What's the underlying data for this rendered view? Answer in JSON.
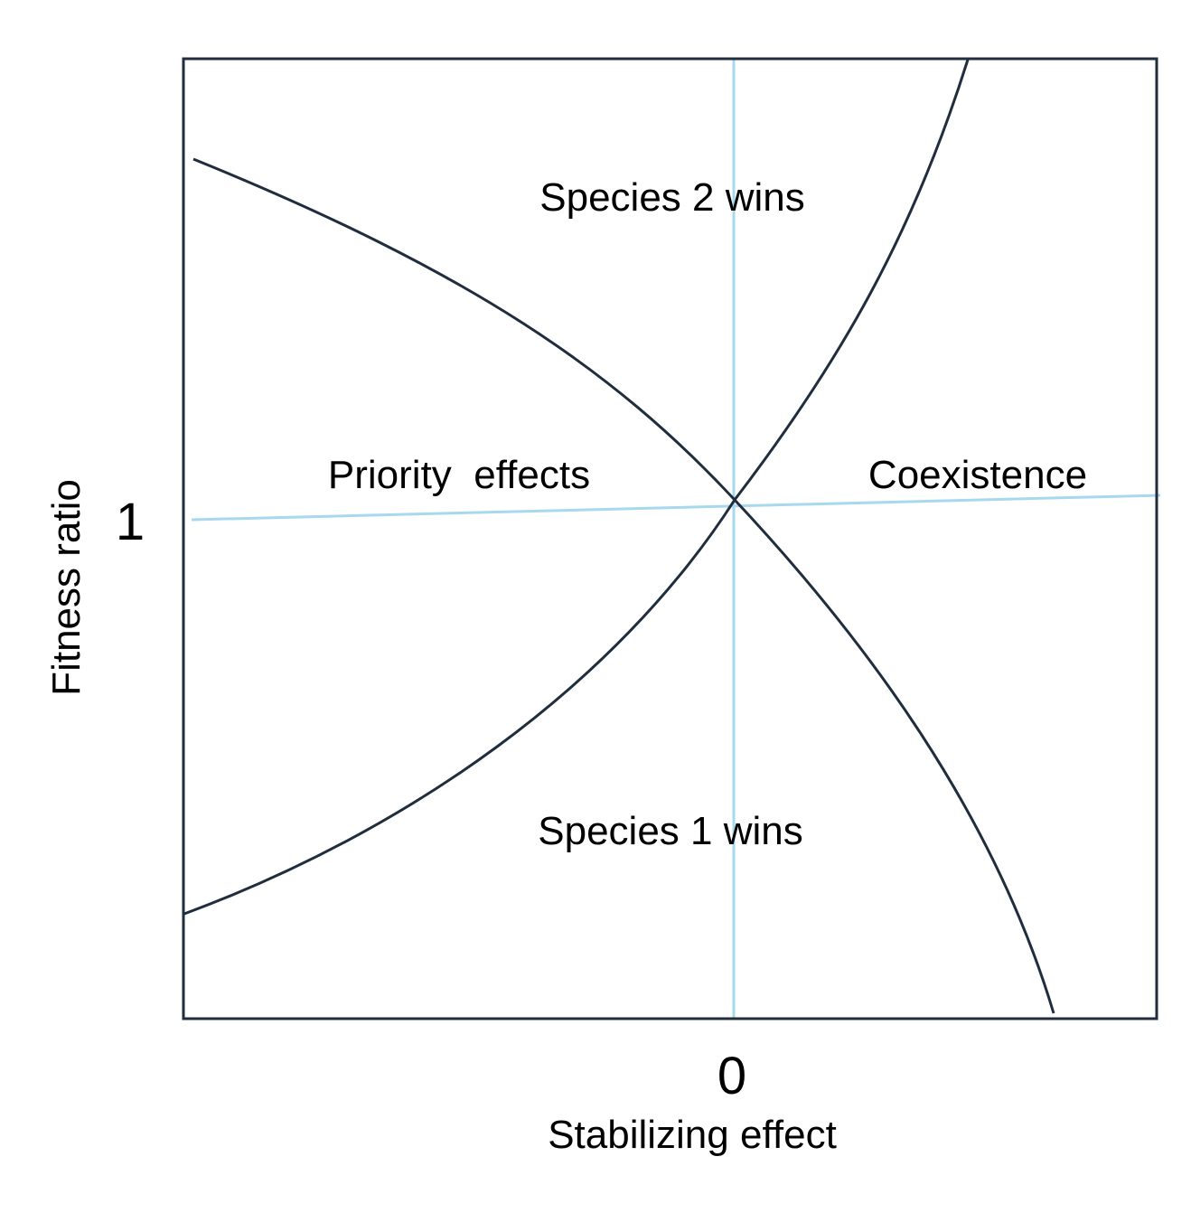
{
  "diagram": {
    "regions": {
      "top": "Species 2 wins",
      "left": "Priority  effects",
      "right": "Coexistence",
      "bottom": "Species 1 wins"
    },
    "ticks": {
      "x_zero": "0",
      "y_one": "1"
    },
    "axes": {
      "xlabel": "Stabilizing effect",
      "ylabel": "Fitness ratio"
    },
    "colors": {
      "frame": "#1f2d3d",
      "curves": "#1f2d3d",
      "reference_lines": "#a8d8f0"
    }
  }
}
